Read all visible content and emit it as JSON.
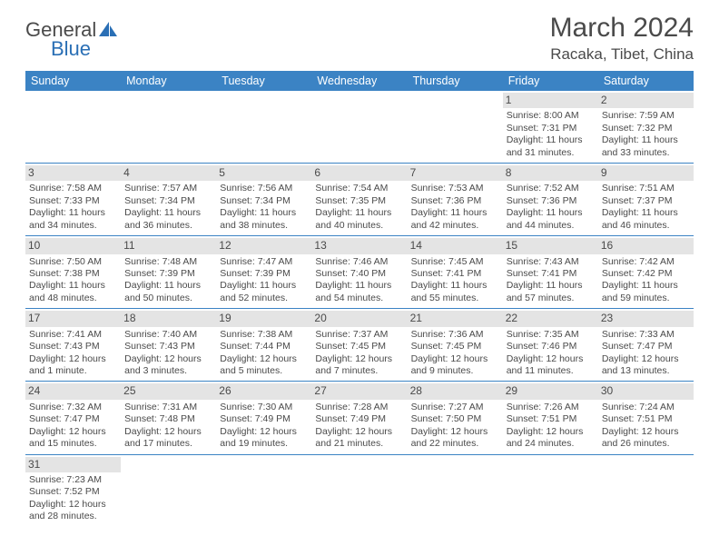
{
  "brand": {
    "name1": "General",
    "name2": "Blue"
  },
  "title": "March 2024",
  "location": "Racaka, Tibet, China",
  "colors": {
    "header_bg": "#3b83c4",
    "header_text": "#ffffff",
    "daynum_bg": "#e4e4e4",
    "text": "#4a4a4a",
    "row_border": "#3b83c4",
    "brand_blue": "#2a6fb5",
    "background": "#ffffff"
  },
  "typography": {
    "title_fontsize": 30,
    "location_fontsize": 17,
    "weekday_fontsize": 12.5,
    "daynum_fontsize": 12,
    "body_fontsize": 10.5
  },
  "weekdays": [
    "Sunday",
    "Monday",
    "Tuesday",
    "Wednesday",
    "Thursday",
    "Friday",
    "Saturday"
  ],
  "weeks": [
    [
      null,
      null,
      null,
      null,
      null,
      {
        "n": "1",
        "sunrise": "Sunrise: 8:00 AM",
        "sunset": "Sunset: 7:31 PM",
        "day1": "Daylight: 11 hours",
        "day2": "and 31 minutes."
      },
      {
        "n": "2",
        "sunrise": "Sunrise: 7:59 AM",
        "sunset": "Sunset: 7:32 PM",
        "day1": "Daylight: 11 hours",
        "day2": "and 33 minutes."
      }
    ],
    [
      {
        "n": "3",
        "sunrise": "Sunrise: 7:58 AM",
        "sunset": "Sunset: 7:33 PM",
        "day1": "Daylight: 11 hours",
        "day2": "and 34 minutes."
      },
      {
        "n": "4",
        "sunrise": "Sunrise: 7:57 AM",
        "sunset": "Sunset: 7:34 PM",
        "day1": "Daylight: 11 hours",
        "day2": "and 36 minutes."
      },
      {
        "n": "5",
        "sunrise": "Sunrise: 7:56 AM",
        "sunset": "Sunset: 7:34 PM",
        "day1": "Daylight: 11 hours",
        "day2": "and 38 minutes."
      },
      {
        "n": "6",
        "sunrise": "Sunrise: 7:54 AM",
        "sunset": "Sunset: 7:35 PM",
        "day1": "Daylight: 11 hours",
        "day2": "and 40 minutes."
      },
      {
        "n": "7",
        "sunrise": "Sunrise: 7:53 AM",
        "sunset": "Sunset: 7:36 PM",
        "day1": "Daylight: 11 hours",
        "day2": "and 42 minutes."
      },
      {
        "n": "8",
        "sunrise": "Sunrise: 7:52 AM",
        "sunset": "Sunset: 7:36 PM",
        "day1": "Daylight: 11 hours",
        "day2": "and 44 minutes."
      },
      {
        "n": "9",
        "sunrise": "Sunrise: 7:51 AM",
        "sunset": "Sunset: 7:37 PM",
        "day1": "Daylight: 11 hours",
        "day2": "and 46 minutes."
      }
    ],
    [
      {
        "n": "10",
        "sunrise": "Sunrise: 7:50 AM",
        "sunset": "Sunset: 7:38 PM",
        "day1": "Daylight: 11 hours",
        "day2": "and 48 minutes."
      },
      {
        "n": "11",
        "sunrise": "Sunrise: 7:48 AM",
        "sunset": "Sunset: 7:39 PM",
        "day1": "Daylight: 11 hours",
        "day2": "and 50 minutes."
      },
      {
        "n": "12",
        "sunrise": "Sunrise: 7:47 AM",
        "sunset": "Sunset: 7:39 PM",
        "day1": "Daylight: 11 hours",
        "day2": "and 52 minutes."
      },
      {
        "n": "13",
        "sunrise": "Sunrise: 7:46 AM",
        "sunset": "Sunset: 7:40 PM",
        "day1": "Daylight: 11 hours",
        "day2": "and 54 minutes."
      },
      {
        "n": "14",
        "sunrise": "Sunrise: 7:45 AM",
        "sunset": "Sunset: 7:41 PM",
        "day1": "Daylight: 11 hours",
        "day2": "and 55 minutes."
      },
      {
        "n": "15",
        "sunrise": "Sunrise: 7:43 AM",
        "sunset": "Sunset: 7:41 PM",
        "day1": "Daylight: 11 hours",
        "day2": "and 57 minutes."
      },
      {
        "n": "16",
        "sunrise": "Sunrise: 7:42 AM",
        "sunset": "Sunset: 7:42 PM",
        "day1": "Daylight: 11 hours",
        "day2": "and 59 minutes."
      }
    ],
    [
      {
        "n": "17",
        "sunrise": "Sunrise: 7:41 AM",
        "sunset": "Sunset: 7:43 PM",
        "day1": "Daylight: 12 hours",
        "day2": "and 1 minute."
      },
      {
        "n": "18",
        "sunrise": "Sunrise: 7:40 AM",
        "sunset": "Sunset: 7:43 PM",
        "day1": "Daylight: 12 hours",
        "day2": "and 3 minutes."
      },
      {
        "n": "19",
        "sunrise": "Sunrise: 7:38 AM",
        "sunset": "Sunset: 7:44 PM",
        "day1": "Daylight: 12 hours",
        "day2": "and 5 minutes."
      },
      {
        "n": "20",
        "sunrise": "Sunrise: 7:37 AM",
        "sunset": "Sunset: 7:45 PM",
        "day1": "Daylight: 12 hours",
        "day2": "and 7 minutes."
      },
      {
        "n": "21",
        "sunrise": "Sunrise: 7:36 AM",
        "sunset": "Sunset: 7:45 PM",
        "day1": "Daylight: 12 hours",
        "day2": "and 9 minutes."
      },
      {
        "n": "22",
        "sunrise": "Sunrise: 7:35 AM",
        "sunset": "Sunset: 7:46 PM",
        "day1": "Daylight: 12 hours",
        "day2": "and 11 minutes."
      },
      {
        "n": "23",
        "sunrise": "Sunrise: 7:33 AM",
        "sunset": "Sunset: 7:47 PM",
        "day1": "Daylight: 12 hours",
        "day2": "and 13 minutes."
      }
    ],
    [
      {
        "n": "24",
        "sunrise": "Sunrise: 7:32 AM",
        "sunset": "Sunset: 7:47 PM",
        "day1": "Daylight: 12 hours",
        "day2": "and 15 minutes."
      },
      {
        "n": "25",
        "sunrise": "Sunrise: 7:31 AM",
        "sunset": "Sunset: 7:48 PM",
        "day1": "Daylight: 12 hours",
        "day2": "and 17 minutes."
      },
      {
        "n": "26",
        "sunrise": "Sunrise: 7:30 AM",
        "sunset": "Sunset: 7:49 PM",
        "day1": "Daylight: 12 hours",
        "day2": "and 19 minutes."
      },
      {
        "n": "27",
        "sunrise": "Sunrise: 7:28 AM",
        "sunset": "Sunset: 7:49 PM",
        "day1": "Daylight: 12 hours",
        "day2": "and 21 minutes."
      },
      {
        "n": "28",
        "sunrise": "Sunrise: 7:27 AM",
        "sunset": "Sunset: 7:50 PM",
        "day1": "Daylight: 12 hours",
        "day2": "and 22 minutes."
      },
      {
        "n": "29",
        "sunrise": "Sunrise: 7:26 AM",
        "sunset": "Sunset: 7:51 PM",
        "day1": "Daylight: 12 hours",
        "day2": "and 24 minutes."
      },
      {
        "n": "30",
        "sunrise": "Sunrise: 7:24 AM",
        "sunset": "Sunset: 7:51 PM",
        "day1": "Daylight: 12 hours",
        "day2": "and 26 minutes."
      }
    ],
    [
      {
        "n": "31",
        "sunrise": "Sunrise: 7:23 AM",
        "sunset": "Sunset: 7:52 PM",
        "day1": "Daylight: 12 hours",
        "day2": "and 28 minutes."
      },
      null,
      null,
      null,
      null,
      null,
      null
    ]
  ]
}
